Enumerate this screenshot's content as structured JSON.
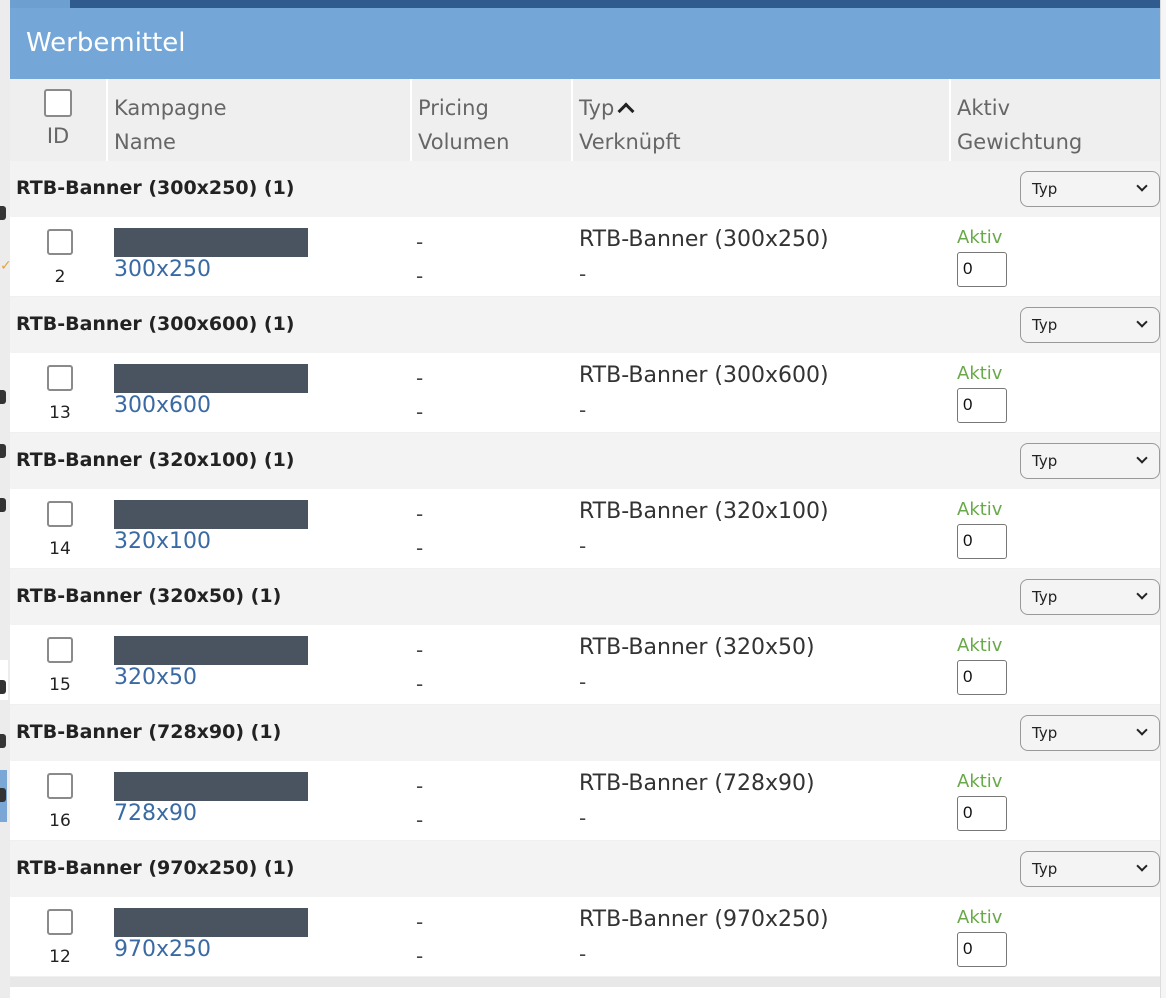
{
  "panel": {
    "title": "Werbemittel"
  },
  "columns": {
    "id": "ID",
    "name_top": "Kampagne",
    "name_bottom": "Name",
    "pricing_top": "Pricing",
    "pricing_bottom": "Volumen",
    "typ_top": "Typ",
    "typ_bottom": "Verknüpft",
    "aktiv_top": "Aktiv",
    "aktiv_bottom": "Gewichtung"
  },
  "groups": [
    {
      "title": "RTB-Banner (300x250) (1)",
      "select": "Typ",
      "row": {
        "id": "2",
        "name": "300x250",
        "pricing": "-",
        "volume": "-",
        "typ": "RTB-Banner (300x250)",
        "linked": "-",
        "status": "Aktiv",
        "weight": "0"
      }
    },
    {
      "title": "RTB-Banner (300x600) (1)",
      "select": "Typ",
      "row": {
        "id": "13",
        "name": "300x600",
        "pricing": "-",
        "volume": "-",
        "typ": "RTB-Banner (300x600)",
        "linked": "-",
        "status": "Aktiv",
        "weight": "0"
      }
    },
    {
      "title": "RTB-Banner (320x100) (1)",
      "select": "Typ",
      "row": {
        "id": "14",
        "name": "320x100",
        "pricing": "-",
        "volume": "-",
        "typ": "RTB-Banner (320x100)",
        "linked": "-",
        "status": "Aktiv",
        "weight": "0"
      }
    },
    {
      "title": "RTB-Banner (320x50) (1)",
      "select": "Typ",
      "row": {
        "id": "15",
        "name": "320x50",
        "pricing": "-",
        "volume": "-",
        "typ": "RTB-Banner (320x50)",
        "linked": "-",
        "status": "Aktiv",
        "weight": "0"
      }
    },
    {
      "title": "RTB-Banner (728x90) (1)",
      "select": "Typ",
      "row": {
        "id": "16",
        "name": "728x90",
        "pricing": "-",
        "volume": "-",
        "typ": "RTB-Banner (728x90)",
        "linked": "-",
        "status": "Aktiv",
        "weight": "0"
      }
    },
    {
      "title": "RTB-Banner (970x250) (1)",
      "select": "Typ",
      "row": {
        "id": "12",
        "name": "970x250",
        "pricing": "-",
        "volume": "-",
        "typ": "RTB-Banner (970x250)",
        "linked": "-",
        "status": "Aktiv",
        "weight": "0"
      }
    }
  ],
  "colors": {
    "header_bg": "#74a6d8",
    "topbar": "#2f5b8f",
    "link": "#3a6aa3",
    "status_active": "#6aa94a",
    "redaction": "#4a5461"
  }
}
